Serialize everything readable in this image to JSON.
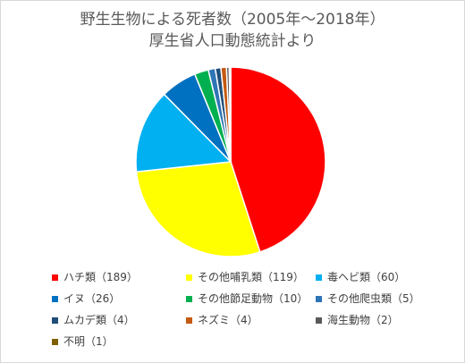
{
  "chart_data": {
    "type": "pie",
    "title": "野生生物による死者数（2005年～2018年）",
    "subtitle": "厚生省人口動態統計より",
    "legend_position": "bottom",
    "slices": [
      {
        "label": "ハチ類",
        "value": 189,
        "color": "#ff0000",
        "legend": "ハチ類（189）"
      },
      {
        "label": "その他哺乳類",
        "value": 119,
        "color": "#ffff00",
        "legend": "その他哺乳類（119）"
      },
      {
        "label": "毒ヘビ類",
        "value": 60,
        "color": "#00b0f0",
        "legend": "毒ヘビ類（60）"
      },
      {
        "label": "イヌ",
        "value": 26,
        "color": "#0070c0",
        "legend": "イヌ（26）"
      },
      {
        "label": "その他節足動物",
        "value": 10,
        "color": "#00b050",
        "legend": "その他節足動物（10）"
      },
      {
        "label": "その他爬虫類",
        "value": 5,
        "color": "#2e75b6",
        "legend": "その他爬虫類（5）"
      },
      {
        "label": "ムカデ類",
        "value": 4,
        "color": "#1f4e79",
        "legend": "ムカデ類（4）"
      },
      {
        "label": "ネズミ",
        "value": 4,
        "color": "#c55a11",
        "legend": "ネズミ（4）"
      },
      {
        "label": "海生動物",
        "value": 2,
        "color": "#595959",
        "legend": "海生動物（2）"
      },
      {
        "label": "不明",
        "value": 1,
        "color": "#7f6000",
        "legend": "不明（1）"
      }
    ]
  }
}
